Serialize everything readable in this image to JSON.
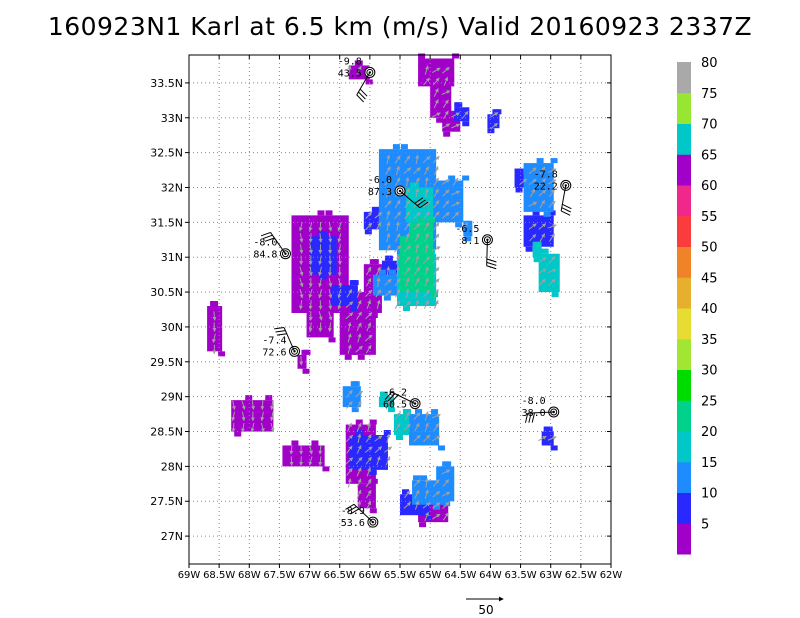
{
  "title": "160923N1 Karl at 6.5 km (m/s) Valid 20160923 2337Z",
  "scale_label": "50",
  "chart_data": {
    "type": "map-field",
    "xlim": [
      -69,
      -62
    ],
    "ylim": [
      26.6,
      33.9
    ],
    "x_ticks": [
      {
        "v": -69,
        "label": "69W"
      },
      {
        "v": -68.5,
        "label": "68.5W"
      },
      {
        "v": -68,
        "label": "68W"
      },
      {
        "v": -67.5,
        "label": "67.5W"
      },
      {
        "v": -67,
        "label": "67W"
      },
      {
        "v": -66.5,
        "label": "66.5W"
      },
      {
        "v": -66,
        "label": "66W"
      },
      {
        "v": -65.5,
        "label": "65.5W"
      },
      {
        "v": -65,
        "label": "65W"
      },
      {
        "v": -64.5,
        "label": "64.5W"
      },
      {
        "v": -64,
        "label": "64W"
      },
      {
        "v": -63.5,
        "label": "63.5W"
      },
      {
        "v": -63,
        "label": "63W"
      },
      {
        "v": -62.5,
        "label": "62.5W"
      },
      {
        "v": -62,
        "label": "62W"
      }
    ],
    "y_ticks": [
      {
        "v": 27,
        "label": "27N"
      },
      {
        "v": 27.5,
        "label": "27.5N"
      },
      {
        "v": 28,
        "label": "28N"
      },
      {
        "v": 28.5,
        "label": "28.5N"
      },
      {
        "v": 29,
        "label": "29N"
      },
      {
        "v": 29.5,
        "label": "29.5N"
      },
      {
        "v": 30,
        "label": "30N"
      },
      {
        "v": 30.5,
        "label": "30.5N"
      },
      {
        "v": 31,
        "label": "31N"
      },
      {
        "v": 31.5,
        "label": "31.5N"
      },
      {
        "v": 32,
        "label": "32N"
      },
      {
        "v": 32.5,
        "label": "32.5N"
      },
      {
        "v": 33,
        "label": "33N"
      },
      {
        "v": 33.5,
        "label": "33.5N"
      }
    ],
    "grid": true,
    "colorbar": {
      "labels": [
        "5",
        "10",
        "15",
        "20",
        "25",
        "30",
        "35",
        "40",
        "45",
        "50",
        "55",
        "60",
        "65",
        "70",
        "75",
        "80"
      ],
      "colors": [
        "#a000c8",
        "#2828ff",
        "#1e8cff",
        "#00c8c8",
        "#00d28c",
        "#00dc00",
        "#a0e632",
        "#e6dc32",
        "#e6af2d",
        "#f08228",
        "#fa3c3c",
        "#f0288c",
        "#a000c8",
        "#00c8c8",
        "#96e632",
        "#a9a9a9"
      ]
    },
    "stations": [
      {
        "lon": -66.0,
        "lat": 33.65,
        "temp": "-9.8",
        "rh": "43.5"
      },
      {
        "lon": -65.5,
        "lat": 31.95,
        "temp": "-6.0",
        "rh": "87.3"
      },
      {
        "lon": -64.05,
        "lat": 31.25,
        "temp": "-6.5",
        "rh": "8.1"
      },
      {
        "lon": -62.75,
        "lat": 32.03,
        "temp": "-7.8",
        "rh": "22.2"
      },
      {
        "lon": -67.4,
        "lat": 31.05,
        "temp": "-8.0",
        "rh": "84.8"
      },
      {
        "lon": -67.25,
        "lat": 29.65,
        "temp": "-7.4",
        "rh": "72.6"
      },
      {
        "lon": -65.25,
        "lat": 28.9,
        "temp": "-6.2",
        "rh": "60.5"
      },
      {
        "lon": -62.95,
        "lat": 28.78,
        "temp": "-8.0",
        "rh": "38.0"
      },
      {
        "lon": -65.95,
        "lat": 27.2,
        "temp": "-8.9",
        "rh": "53.6"
      }
    ],
    "field": [
      {
        "color": "#a000c8",
        "blocks": [
          [
            -65.2,
            33.45,
            -64.6,
            33.85
          ],
          [
            -65.0,
            33.0,
            -64.65,
            33.5
          ],
          [
            -64.8,
            32.8,
            -64.5,
            33.1
          ],
          [
            -66.35,
            33.55,
            -66.0,
            33.75
          ],
          [
            -67.3,
            30.2,
            -66.35,
            31.6
          ],
          [
            -67.05,
            29.85,
            -66.6,
            30.3
          ],
          [
            -66.5,
            29.6,
            -66.2,
            30.2
          ],
          [
            -66.4,
            29.6,
            -65.9,
            30.5
          ],
          [
            -66.1,
            30.2,
            -65.8,
            30.9
          ],
          [
            -68.7,
            29.65,
            -68.45,
            30.3
          ],
          [
            -68.3,
            28.5,
            -67.6,
            28.95
          ],
          [
            -67.45,
            28.0,
            -66.75,
            28.3
          ],
          [
            -66.4,
            27.75,
            -65.9,
            28.6
          ],
          [
            -66.2,
            27.4,
            -65.9,
            27.75
          ],
          [
            -65.2,
            27.2,
            -64.7,
            27.5
          ],
          [
            -67.2,
            29.4,
            -67.05,
            29.6
          ]
        ]
      },
      {
        "color": "#2828ff",
        "blocks": [
          [
            -67.0,
            30.75,
            -66.55,
            31.3
          ],
          [
            -66.65,
            30.3,
            -66.2,
            30.6
          ],
          [
            -66.35,
            27.95,
            -65.7,
            28.45
          ],
          [
            -65.5,
            27.3,
            -65.0,
            27.6
          ],
          [
            -63.45,
            31.15,
            -62.95,
            31.6
          ],
          [
            -63.15,
            28.3,
            -62.95,
            28.5
          ],
          [
            -66.1,
            31.4,
            -65.85,
            31.65
          ],
          [
            -64.6,
            32.95,
            -64.35,
            33.15
          ],
          [
            -64.05,
            32.85,
            -63.85,
            33.05
          ],
          [
            -63.6,
            32.0,
            -63.3,
            32.2
          ],
          [
            -65.8,
            30.7,
            -65.45,
            30.95
          ]
        ]
      },
      {
        "color": "#1e8cff",
        "blocks": [
          [
            -65.85,
            31.1,
            -64.9,
            32.55
          ],
          [
            -64.95,
            31.5,
            -64.45,
            32.1
          ],
          [
            -65.35,
            28.3,
            -64.85,
            28.75
          ],
          [
            -65.3,
            27.45,
            -64.75,
            27.8
          ],
          [
            -64.9,
            27.5,
            -64.6,
            28.0
          ],
          [
            -63.45,
            31.65,
            -62.95,
            32.35
          ],
          [
            -66.45,
            28.85,
            -66.15,
            29.15
          ],
          [
            -64.45,
            31.3,
            -64.3,
            31.45
          ],
          [
            -65.95,
            30.45,
            -65.55,
            30.75
          ]
        ]
      },
      {
        "color": "#00c8c8",
        "blocks": [
          [
            -65.4,
            31.5,
            -64.95,
            32.0
          ],
          [
            -65.55,
            30.3,
            -64.9,
            31.05
          ],
          [
            -63.2,
            30.5,
            -62.85,
            31.05
          ],
          [
            -65.6,
            28.45,
            -65.35,
            28.75
          ],
          [
            -65.85,
            28.85,
            -65.6,
            29.0
          ],
          [
            -63.3,
            31.0,
            -63.15,
            31.15
          ]
        ]
      },
      {
        "color": "#00d28c",
        "blocks": [
          [
            -65.5,
            30.5,
            -64.95,
            31.3
          ],
          [
            -65.35,
            31.2,
            -64.95,
            31.5
          ]
        ]
      }
    ]
  }
}
